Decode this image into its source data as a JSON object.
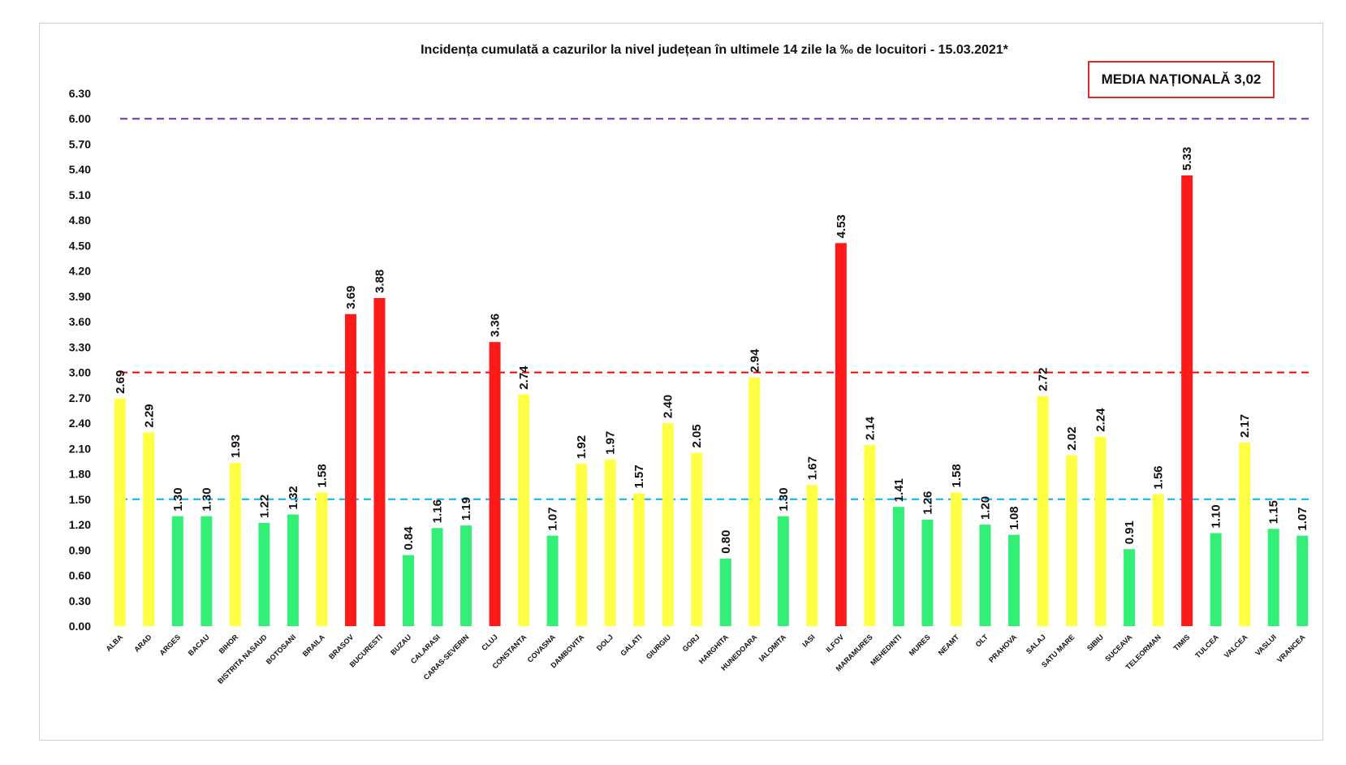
{
  "chart_data": {
    "type": "bar",
    "title": "Incidența cumulată a cazurilor la nivel județean în ultimele 14 zile   la ‰ de locuitori  - 15.03.2021*",
    "annotation": "MEDIA NAȚIONALĂ 3,02",
    "ylim": [
      0,
      6.3
    ],
    "yticks": [
      "0.00",
      "0.30",
      "0.60",
      "0.90",
      "1.20",
      "1.50",
      "1.80",
      "2.10",
      "2.40",
      "2.70",
      "3.00",
      "3.30",
      "3.60",
      "3.90",
      "4.20",
      "4.50",
      "4.80",
      "5.10",
      "5.40",
      "5.70",
      "6.00",
      "6.30"
    ],
    "grid": false,
    "reference_lines": [
      {
        "value": 6.0,
        "color": "#7030a0",
        "style": "dashed"
      },
      {
        "value": 3.0,
        "color": "#ff0000",
        "style": "dashed"
      },
      {
        "value": 1.5,
        "color": "#00b0f0",
        "style": "dashed"
      }
    ],
    "colors": {
      "green": "#33ee77",
      "yellow": "#ffff44",
      "red": "#ff1a1a"
    },
    "categories": [
      "ALBA",
      "ARAD",
      "ARGES",
      "BACAU",
      "BIHOR",
      "BISTRITA NASAUD",
      "BOTOSANI",
      "BRAILA",
      "BRASOV",
      "BUCURESTI",
      "BUZAU",
      "CALARASI",
      "CARAS-SEVERIN",
      "CLUJ",
      "CONSTANTA",
      "COVASNA",
      "DAMBOVITA",
      "DOLJ",
      "GALATI",
      "GIURGIU",
      "GORJ",
      "HARGHITA",
      "HUNEDOARA",
      "IALOMITA",
      "IASI",
      "ILFOV",
      "MARAMURES",
      "MEHEDINTI",
      "MURES",
      "NEAMT",
      "OLT",
      "PRAHOVA",
      "SALAJ",
      "SATU MARE",
      "SIBIU",
      "SUCEAVA",
      "TELEORMAN",
      "TIMIS",
      "TULCEA",
      "VALCEA",
      "VASLUI",
      "VRANCEA"
    ],
    "values": [
      2.69,
      2.29,
      1.3,
      1.3,
      1.93,
      1.22,
      1.32,
      1.58,
      3.69,
      3.88,
      0.84,
      1.16,
      1.19,
      3.36,
      2.74,
      1.07,
      1.92,
      1.97,
      1.57,
      2.4,
      2.05,
      0.8,
      2.94,
      1.3,
      1.67,
      4.53,
      2.14,
      1.41,
      1.26,
      1.58,
      1.2,
      1.08,
      2.72,
      2.02,
      2.24,
      0.91,
      1.56,
      5.33,
      1.1,
      2.17,
      1.15,
      1.07
    ],
    "labels": [
      "2.69",
      "2.29",
      "1.30",
      "1.30",
      "1.93",
      "1.22",
      "1.32",
      "1.58",
      "3.69",
      "3.88",
      "0.84",
      "1.16",
      "1.19",
      "3.36",
      "2.74",
      "1.07",
      "1.92",
      "1.97",
      "1.57",
      "2.40",
      "2.05",
      "0.80",
      "2.94",
      "1.30",
      "1.67",
      "4.53",
      "2.14",
      "1.41",
      "1.26",
      "1.58",
      "1.20",
      "1.08",
      "2.72",
      "2.02",
      "2.24",
      "0.91",
      "1.56",
      "5.33",
      "1.10",
      "2.17",
      "1.15",
      "1.07"
    ]
  }
}
